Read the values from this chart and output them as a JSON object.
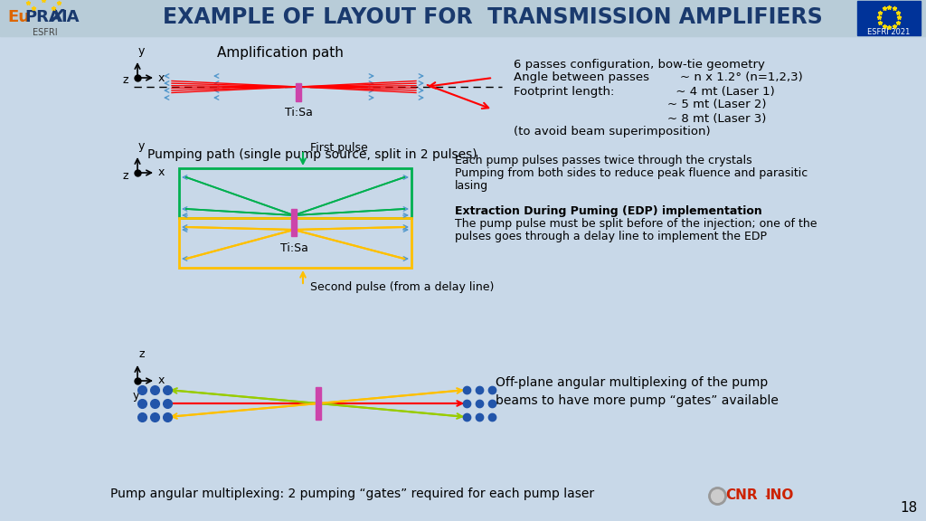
{
  "title": "EXAMPLE OF LAYOUT FOR  TRANSMISSION AMPLIFIERS",
  "title_color": "#1a3a6e",
  "bg_color": "#c8d8e8",
  "header_bg": "#b0c4d8",
  "amp_label": "Amplification path",
  "amp_tisa_label": "Ti:Sa",
  "pump_title": "Pumping path (single pump source, split in 2 pulses)",
  "pump_tisa_label": "Ti:Sa",
  "first_pulse_label": "First pulse",
  "second_pulse_label": "Second pulse (from a delay line)",
  "bottom_label": "Off-plane angular multiplexing of the pump\nbeams to have more pump “gates” available",
  "footer_label": "Pump angular multiplexing: 2 pumping “gates” required for each pump laser",
  "right_text": [
    [
      "6 passes configuration, bow-tie geometry",
      false
    ],
    [
      "Angle between passes        ~ n x 1.2° (n=1,2,3)",
      false
    ],
    [
      "Footprint length:                ~ 4 mt (Laser 1)",
      false
    ],
    [
      "                                        ~ 5 mt (Laser 2)",
      false
    ],
    [
      "                                        ~ 8 mt (Laser 3)",
      false
    ],
    [
      "(to avoid beam superimposition)",
      false
    ]
  ],
  "right_text2": [
    [
      "Each pump pulses passes twice through the crystals",
      false
    ],
    [
      "Pumping from both sides to reduce peak fluence and parasitic",
      false
    ],
    [
      "lasing",
      false
    ],
    [
      "",
      false
    ],
    [
      "Extraction During Puming (EDP) implementation",
      true
    ],
    [
      "The pump pulse must be split before of the injection; one of the",
      false
    ],
    [
      "pulses goes through a delay line to implement the EDP",
      false
    ]
  ],
  "red": "#ff0000",
  "green": "#00b050",
  "cyan_arrow": "#5599cc",
  "yellow": "#ffc000",
  "magenta": "#cc44aa",
  "blue_arrow": "#5599cc",
  "blue_dot": "#2255aa",
  "lime": "#99cc00",
  "orange_arrow": "#ffcc00"
}
